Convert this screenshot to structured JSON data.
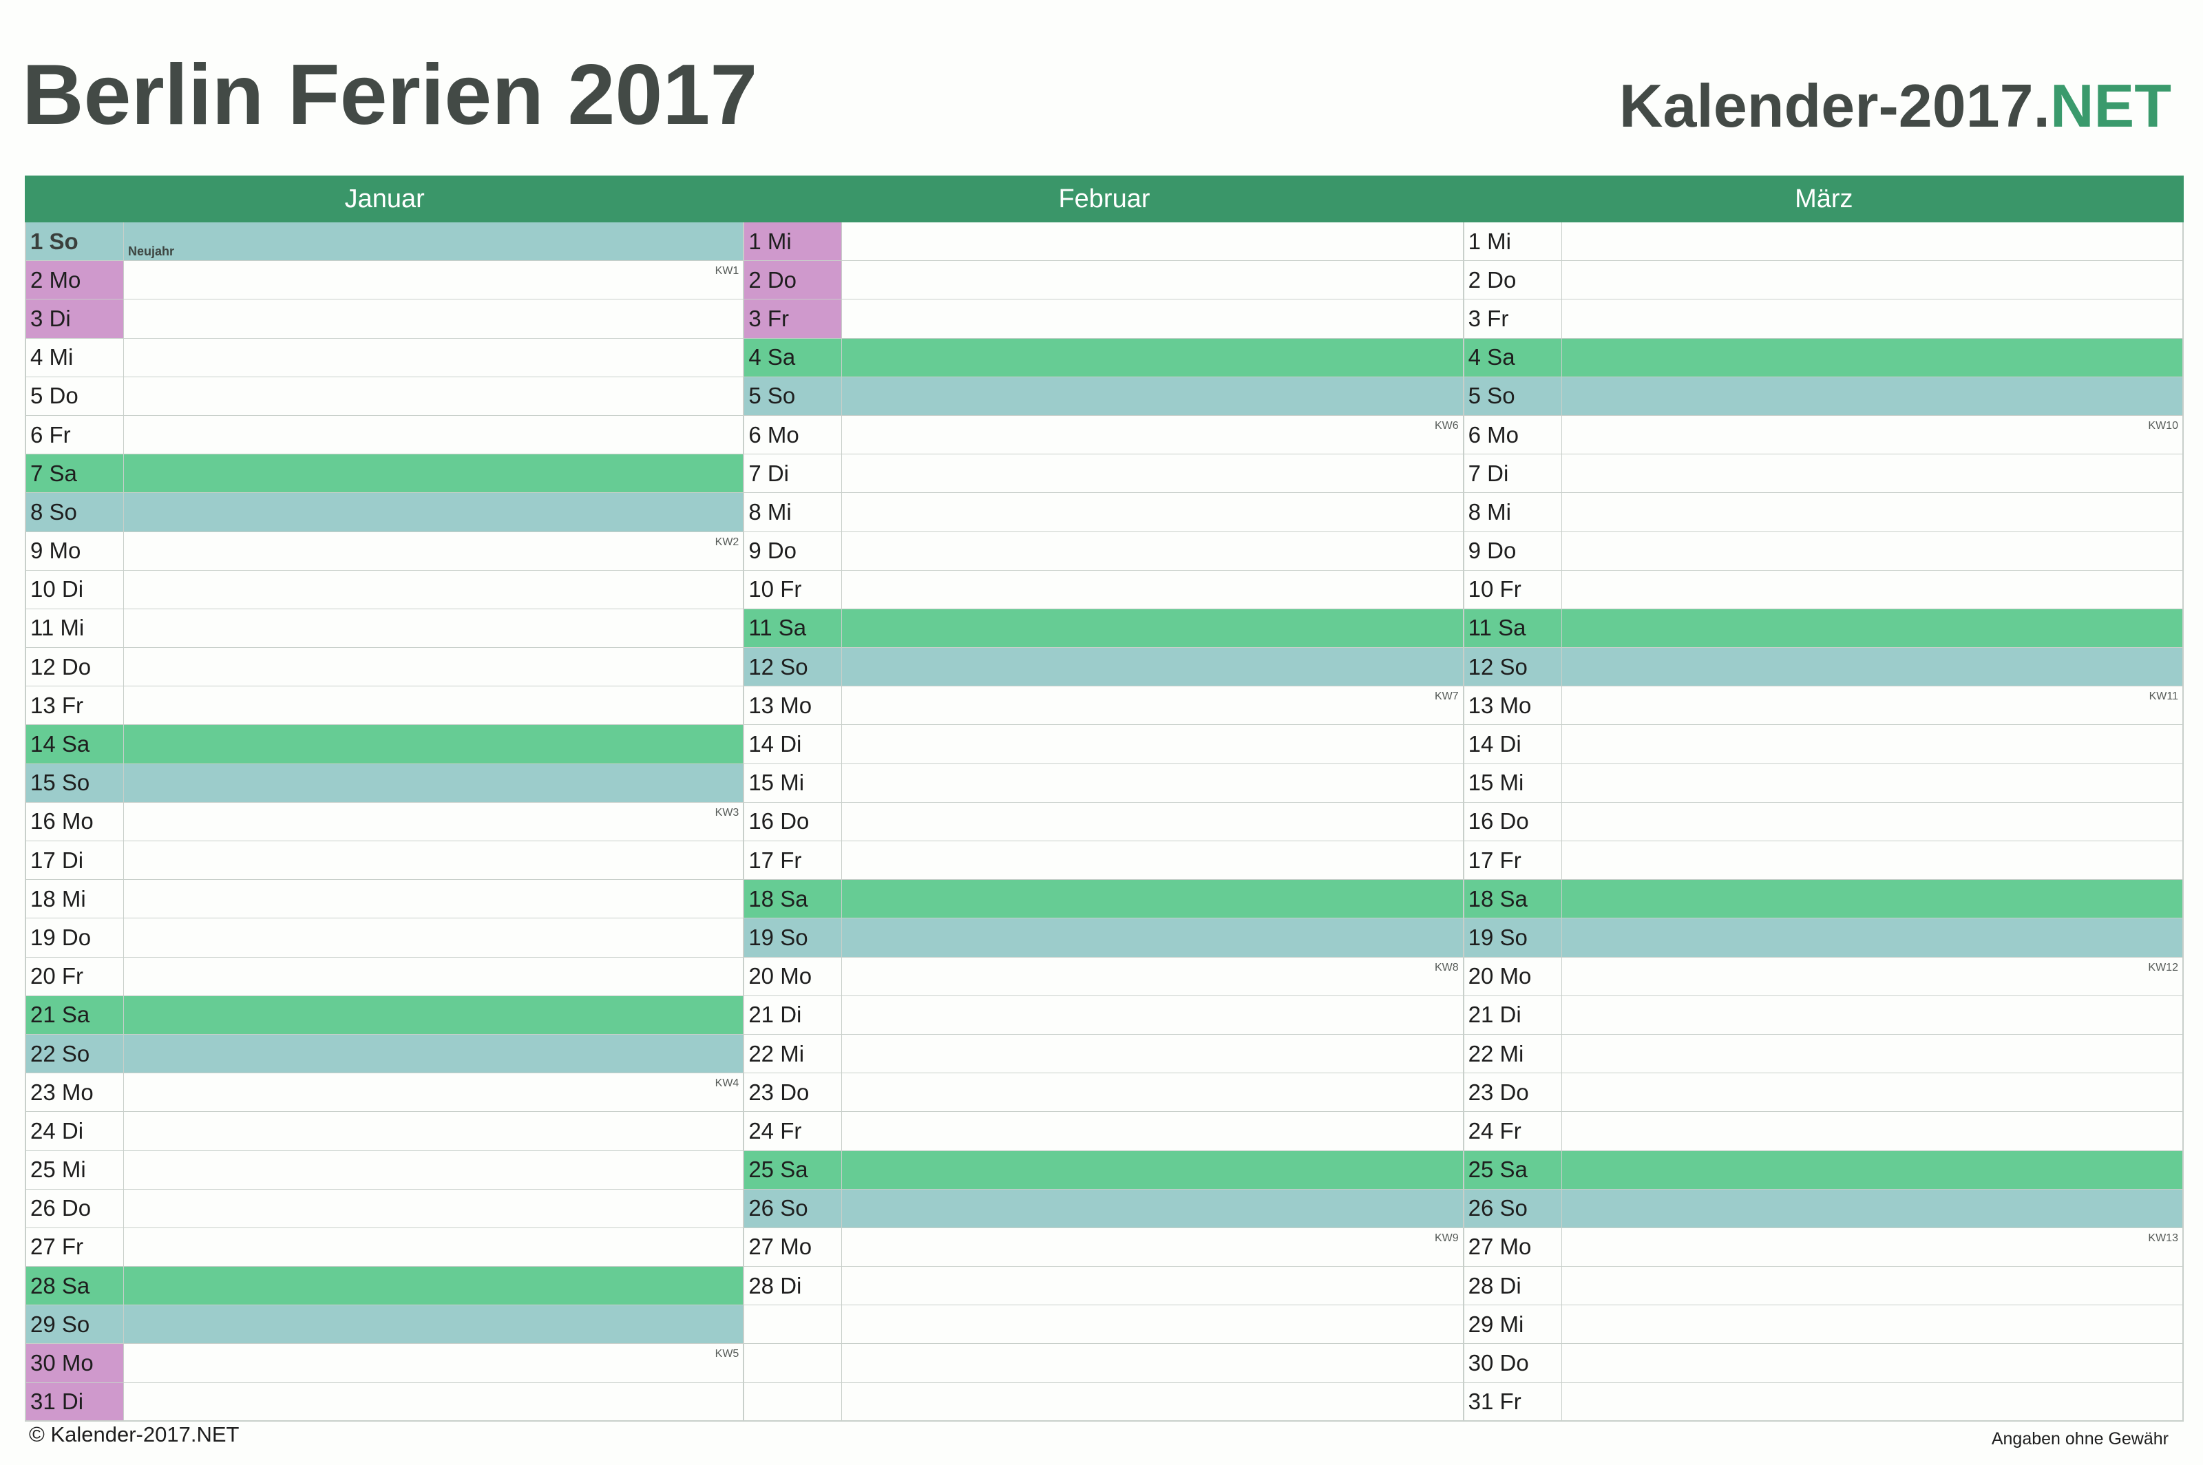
{
  "header": {
    "title": "Berlin Ferien 2017",
    "brand_main": "Kalender-2017.",
    "brand_suffix": "NET"
  },
  "colors": {
    "header_green": "#3a9669",
    "saturday": "#66cc94",
    "sunday": "#9ccccb",
    "school_holiday": "#cf99cc",
    "brand_accent": "#3a9a6c"
  },
  "months": [
    {
      "name": "Januar",
      "days": [
        {
          "label": "1 So",
          "type": "so",
          "holiday": true,
          "event": "Neujahr"
        },
        {
          "label": "2 Mo",
          "type": "ferien",
          "kw": "KW1"
        },
        {
          "label": "3 Di",
          "type": "ferien"
        },
        {
          "label": "4 Mi"
        },
        {
          "label": "5 Do"
        },
        {
          "label": "6 Fr"
        },
        {
          "label": "7 Sa",
          "type": "sa"
        },
        {
          "label": "8 So",
          "type": "so"
        },
        {
          "label": "9 Mo",
          "kw": "KW2"
        },
        {
          "label": "10 Di"
        },
        {
          "label": "11 Mi"
        },
        {
          "label": "12 Do"
        },
        {
          "label": "13 Fr"
        },
        {
          "label": "14 Sa",
          "type": "sa"
        },
        {
          "label": "15 So",
          "type": "so"
        },
        {
          "label": "16 Mo",
          "kw": "KW3"
        },
        {
          "label": "17 Di"
        },
        {
          "label": "18 Mi"
        },
        {
          "label": "19 Do"
        },
        {
          "label": "20 Fr"
        },
        {
          "label": "21 Sa",
          "type": "sa"
        },
        {
          "label": "22 So",
          "type": "so"
        },
        {
          "label": "23 Mo",
          "kw": "KW4"
        },
        {
          "label": "24 Di"
        },
        {
          "label": "25 Mi"
        },
        {
          "label": "26 Do"
        },
        {
          "label": "27 Fr"
        },
        {
          "label": "28 Sa",
          "type": "sa"
        },
        {
          "label": "29 So",
          "type": "so"
        },
        {
          "label": "30 Mo",
          "type": "ferien",
          "kw": "KW5"
        },
        {
          "label": "31 Di",
          "type": "ferien"
        }
      ]
    },
    {
      "name": "Februar",
      "days": [
        {
          "label": "1 Mi",
          "type": "ferien"
        },
        {
          "label": "2 Do",
          "type": "ferien"
        },
        {
          "label": "3 Fr",
          "type": "ferien"
        },
        {
          "label": "4 Sa",
          "type": "sa"
        },
        {
          "label": "5 So",
          "type": "so"
        },
        {
          "label": "6 Mo",
          "kw": "KW6"
        },
        {
          "label": "7 Di"
        },
        {
          "label": "8 Mi"
        },
        {
          "label": "9 Do"
        },
        {
          "label": "10 Fr"
        },
        {
          "label": "11 Sa",
          "type": "sa"
        },
        {
          "label": "12 So",
          "type": "so"
        },
        {
          "label": "13 Mo",
          "kw": "KW7"
        },
        {
          "label": "14 Di"
        },
        {
          "label": "15 Mi"
        },
        {
          "label": "16 Do"
        },
        {
          "label": "17 Fr"
        },
        {
          "label": "18 Sa",
          "type": "sa"
        },
        {
          "label": "19 So",
          "type": "so"
        },
        {
          "label": "20 Mo",
          "kw": "KW8"
        },
        {
          "label": "21 Di"
        },
        {
          "label": "22 Mi"
        },
        {
          "label": "23 Do"
        },
        {
          "label": "24 Fr"
        },
        {
          "label": "25 Sa",
          "type": "sa"
        },
        {
          "label": "26 So",
          "type": "so"
        },
        {
          "label": "27 Mo",
          "kw": "KW9"
        },
        {
          "label": "28 Di"
        },
        {
          "label": "",
          "type": "empty"
        },
        {
          "label": "",
          "type": "empty"
        },
        {
          "label": "",
          "type": "empty"
        }
      ]
    },
    {
      "name": "März",
      "days": [
        {
          "label": "1 Mi"
        },
        {
          "label": "2 Do"
        },
        {
          "label": "3 Fr"
        },
        {
          "label": "4 Sa",
          "type": "sa"
        },
        {
          "label": "5 So",
          "type": "so"
        },
        {
          "label": "6 Mo",
          "kw": "KW10"
        },
        {
          "label": "7 Di"
        },
        {
          "label": "8 Mi"
        },
        {
          "label": "9 Do"
        },
        {
          "label": "10 Fr"
        },
        {
          "label": "11 Sa",
          "type": "sa"
        },
        {
          "label": "12 So",
          "type": "so"
        },
        {
          "label": "13 Mo",
          "kw": "KW11"
        },
        {
          "label": "14 Di"
        },
        {
          "label": "15 Mi"
        },
        {
          "label": "16 Do"
        },
        {
          "label": "17 Fr"
        },
        {
          "label": "18 Sa",
          "type": "sa"
        },
        {
          "label": "19 So",
          "type": "so"
        },
        {
          "label": "20 Mo",
          "kw": "KW12"
        },
        {
          "label": "21 Di"
        },
        {
          "label": "22 Mi"
        },
        {
          "label": "23 Do"
        },
        {
          "label": "24 Fr"
        },
        {
          "label": "25 Sa",
          "type": "sa"
        },
        {
          "label": "26 So",
          "type": "so"
        },
        {
          "label": "27 Mo",
          "kw": "KW13"
        },
        {
          "label": "28 Di"
        },
        {
          "label": "29 Mi"
        },
        {
          "label": "30 Do"
        },
        {
          "label": "31 Fr"
        }
      ]
    }
  ],
  "footer": {
    "copyright": "© Kalender-2017.NET",
    "disclaimer": "Angaben ohne Gewähr"
  }
}
